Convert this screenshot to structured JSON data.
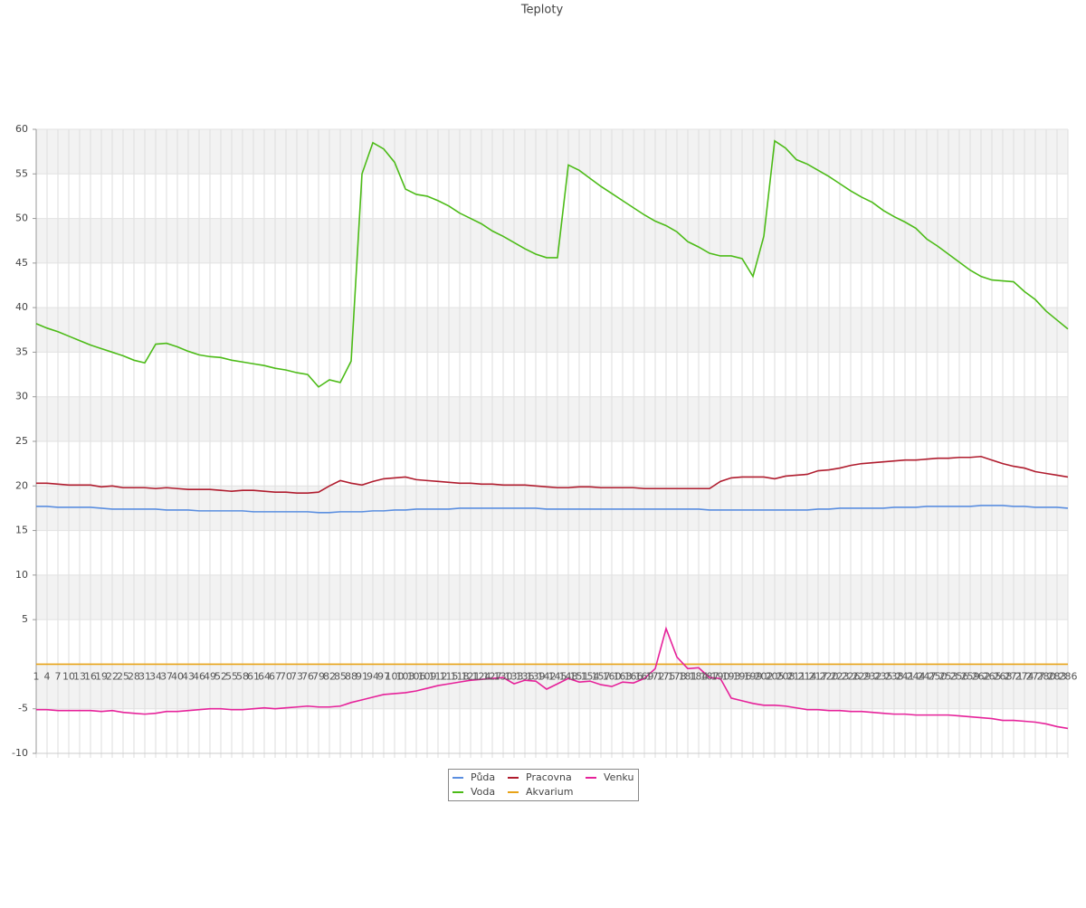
{
  "chart_data": {
    "type": "line",
    "title": "Teploty",
    "categories": [
      "1",
      "4",
      "7",
      "10",
      "13",
      "16",
      "19",
      "22",
      "25",
      "28",
      "31",
      "34",
      "37",
      "40",
      "43",
      "46",
      "49",
      "52",
      "55",
      "58",
      "61",
      "64",
      "67",
      "70",
      "73",
      "76",
      "79",
      "82",
      "85",
      "88",
      "91",
      "94",
      "97",
      "100",
      "103",
      "106",
      "109",
      "112",
      "115",
      "118",
      "121",
      "124",
      "127",
      "130",
      "133",
      "136",
      "139",
      "142",
      "145",
      "148",
      "151",
      "154",
      "157",
      "160",
      "163",
      "166",
      "169",
      "172",
      "175",
      "178",
      "181",
      "184",
      "187",
      "190",
      "193",
      "196",
      "199",
      "202",
      "205",
      "208",
      "211",
      "214",
      "217",
      "220",
      "223",
      "226",
      "229",
      "232",
      "235",
      "238",
      "241",
      "244",
      "247",
      "250",
      "253",
      "256",
      "259",
      "262",
      "265",
      "268",
      "271",
      "274",
      "277",
      "280",
      "283",
      "286"
    ],
    "series": [
      {
        "name": "Půda",
        "color": "#5a8ee0",
        "values": [
          17.7,
          17.7,
          17.6,
          17.6,
          17.6,
          17.6,
          17.5,
          17.4,
          17.4,
          17.4,
          17.4,
          17.4,
          17.3,
          17.3,
          17.3,
          17.2,
          17.2,
          17.2,
          17.2,
          17.2,
          17.1,
          17.1,
          17.1,
          17.1,
          17.1,
          17.1,
          17.0,
          17.0,
          17.1,
          17.1,
          17.1,
          17.2,
          17.2,
          17.3,
          17.3,
          17.4,
          17.4,
          17.4,
          17.4,
          17.5,
          17.5,
          17.5,
          17.5,
          17.5,
          17.5,
          17.5,
          17.5,
          17.4,
          17.4,
          17.4,
          17.4,
          17.4,
          17.4,
          17.4,
          17.4,
          17.4,
          17.4,
          17.4,
          17.4,
          17.4,
          17.4,
          17.4,
          17.3,
          17.3,
          17.3,
          17.3,
          17.3,
          17.3,
          17.3,
          17.3,
          17.3,
          17.3,
          17.4,
          17.4,
          17.5,
          17.5,
          17.5,
          17.5,
          17.5,
          17.6,
          17.6,
          17.6,
          17.7,
          17.7,
          17.7,
          17.7,
          17.7,
          17.8,
          17.8,
          17.8,
          17.7,
          17.7,
          17.6,
          17.6,
          17.6,
          17.5
        ]
      },
      {
        "name": "Voda",
        "color": "#4cbb17",
        "values": [
          38.2,
          37.7,
          37.3,
          36.8,
          36.3,
          35.8,
          35.4,
          35.0,
          34.6,
          34.1,
          33.8,
          35.9,
          36.0,
          35.6,
          35.1,
          34.7,
          34.5,
          34.4,
          34.1,
          33.9,
          33.7,
          33.5,
          33.2,
          33.0,
          32.7,
          32.5,
          31.1,
          31.9,
          31.6,
          34.0,
          55.0,
          58.5,
          57.8,
          56.3,
          53.3,
          52.7,
          52.5,
          52.0,
          51.4,
          50.6,
          50.0,
          49.4,
          48.6,
          48.0,
          47.3,
          46.6,
          46.0,
          45.6,
          45.6,
          56.0,
          55.4,
          54.5,
          53.6,
          52.8,
          52.0,
          51.2,
          50.4,
          49.7,
          49.2,
          48.5,
          47.4,
          46.8,
          46.1,
          45.8,
          45.8,
          45.5,
          43.5,
          48.0,
          58.7,
          57.9,
          56.6,
          56.1,
          55.4,
          54.7,
          53.9,
          53.1,
          52.4,
          51.8,
          50.9,
          50.2,
          49.6,
          48.9,
          47.7,
          46.9,
          46.0,
          45.1,
          44.2,
          43.5,
          43.1,
          43.0,
          42.9,
          41.8,
          40.9,
          39.6,
          38.6,
          37.6
        ]
      },
      {
        "name": "Pracovna",
        "color": "#b01c2e",
        "values": [
          20.3,
          20.3,
          20.2,
          20.1,
          20.1,
          20.1,
          19.9,
          20.0,
          19.8,
          19.8,
          19.8,
          19.7,
          19.8,
          19.7,
          19.6,
          19.6,
          19.6,
          19.5,
          19.4,
          19.5,
          19.5,
          19.4,
          19.3,
          19.3,
          19.2,
          19.2,
          19.3,
          20.0,
          20.6,
          20.3,
          20.1,
          20.5,
          20.8,
          20.9,
          21.0,
          20.7,
          20.6,
          20.5,
          20.4,
          20.3,
          20.3,
          20.2,
          20.2,
          20.1,
          20.1,
          20.1,
          20.0,
          19.9,
          19.8,
          19.8,
          19.9,
          19.9,
          19.8,
          19.8,
          19.8,
          19.8,
          19.7,
          19.7,
          19.7,
          19.7,
          19.7,
          19.7,
          19.7,
          20.5,
          20.9,
          21.0,
          21.0,
          21.0,
          20.8,
          21.1,
          21.2,
          21.3,
          21.7,
          21.8,
          22.0,
          22.3,
          22.5,
          22.6,
          22.7,
          22.8,
          22.9,
          22.9,
          23.0,
          23.1,
          23.1,
          23.2,
          23.2,
          23.3,
          22.9,
          22.5,
          22.2,
          22.0,
          21.6,
          21.4,
          21.2,
          21.0
        ]
      },
      {
        "name": "Akvarium",
        "color": "#e8a317",
        "values": [
          0,
          0,
          0,
          0,
          0,
          0,
          0,
          0,
          0,
          0,
          0,
          0,
          0,
          0,
          0,
          0,
          0,
          0,
          0,
          0,
          0,
          0,
          0,
          0,
          0,
          0,
          0,
          0,
          0,
          0,
          0,
          0,
          0,
          0,
          0,
          0,
          0,
          0,
          0,
          0,
          0,
          0,
          0,
          0,
          0,
          0,
          0,
          0,
          0,
          0,
          0,
          0,
          0,
          0,
          0,
          0,
          0,
          0,
          0,
          0,
          0,
          0,
          0,
          0,
          0,
          0,
          0,
          0,
          0,
          0,
          0,
          0,
          0,
          0,
          0,
          0,
          0,
          0,
          0,
          0,
          0,
          0,
          0,
          0,
          0,
          0,
          0,
          0,
          0,
          0,
          0,
          0,
          0,
          0,
          0,
          0
        ]
      },
      {
        "name": "Venku",
        "color": "#e6229a",
        "values": [
          -5.1,
          -5.1,
          -5.2,
          -5.2,
          -5.2,
          -5.2,
          -5.3,
          -5.2,
          -5.4,
          -5.5,
          -5.6,
          -5.5,
          -5.3,
          -5.3,
          -5.2,
          -5.1,
          -5.0,
          -5.0,
          -5.1,
          -5.1,
          -5.0,
          -4.9,
          -5.0,
          -4.9,
          -4.8,
          -4.7,
          -4.8,
          -4.8,
          -4.7,
          -4.3,
          -4.0,
          -3.7,
          -3.4,
          -3.3,
          -3.2,
          -3.0,
          -2.7,
          -2.4,
          -2.2,
          -2.0,
          -1.8,
          -1.7,
          -1.6,
          -1.5,
          -2.2,
          -1.8,
          -1.9,
          -2.8,
          -2.2,
          -1.6,
          -2.0,
          -1.9,
          -2.3,
          -2.5,
          -2.0,
          -2.1,
          -1.6,
          -0.5,
          4.0,
          0.8,
          -0.5,
          -0.4,
          -1.5,
          -1.6,
          -3.8,
          -4.1,
          -4.4,
          -4.6,
          -4.6,
          -4.7,
          -4.9,
          -5.1,
          -5.1,
          -5.2,
          -5.2,
          -5.3,
          -5.3,
          -5.4,
          -5.5,
          -5.6,
          -5.6,
          -5.7,
          -5.7,
          -5.7,
          -5.7,
          -5.8,
          -5.9,
          -6.0,
          -6.1,
          -6.3,
          -6.3,
          -6.4,
          -6.5,
          -6.7,
          -7.0,
          -7.2
        ]
      }
    ],
    "ylim": [
      -10,
      60
    ],
    "yticks": [
      60,
      55,
      50,
      45,
      40,
      35,
      30,
      25,
      20,
      15,
      10,
      5,
      -5,
      -10
    ],
    "grid": true
  }
}
